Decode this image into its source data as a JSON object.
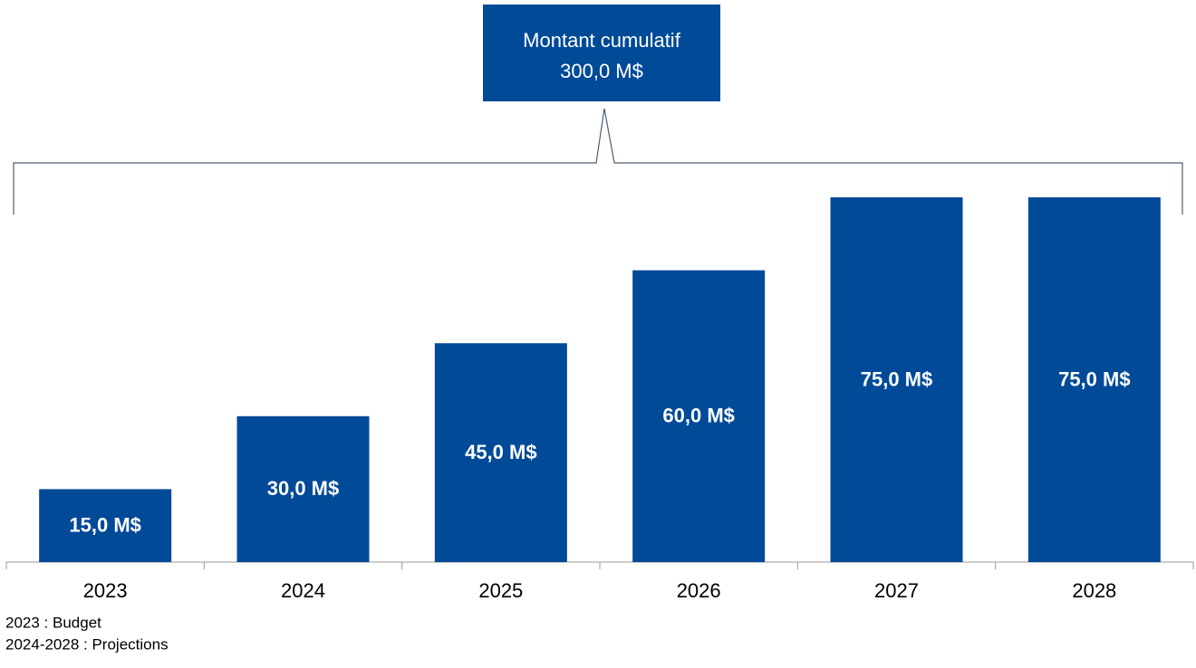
{
  "chart_data": {
    "type": "bar",
    "categories": [
      "2023",
      "2024",
      "2025",
      "2026",
      "2027",
      "2028"
    ],
    "values": [
      15,
      30,
      45,
      60,
      75,
      75
    ],
    "value_labels": [
      "15,0 M$",
      "30,0 M$",
      "45,0 M$",
      "60,0 M$",
      "75,0 M$",
      "75,0 M$"
    ],
    "color": "#004a98",
    "ylim": [
      0,
      75
    ],
    "annotation": {
      "title": "Montant cumulatif",
      "value": 300,
      "value_label": "300,0 M$"
    },
    "notes": [
      "2023 : Budget",
      "2024-2028 : Projections"
    ]
  }
}
